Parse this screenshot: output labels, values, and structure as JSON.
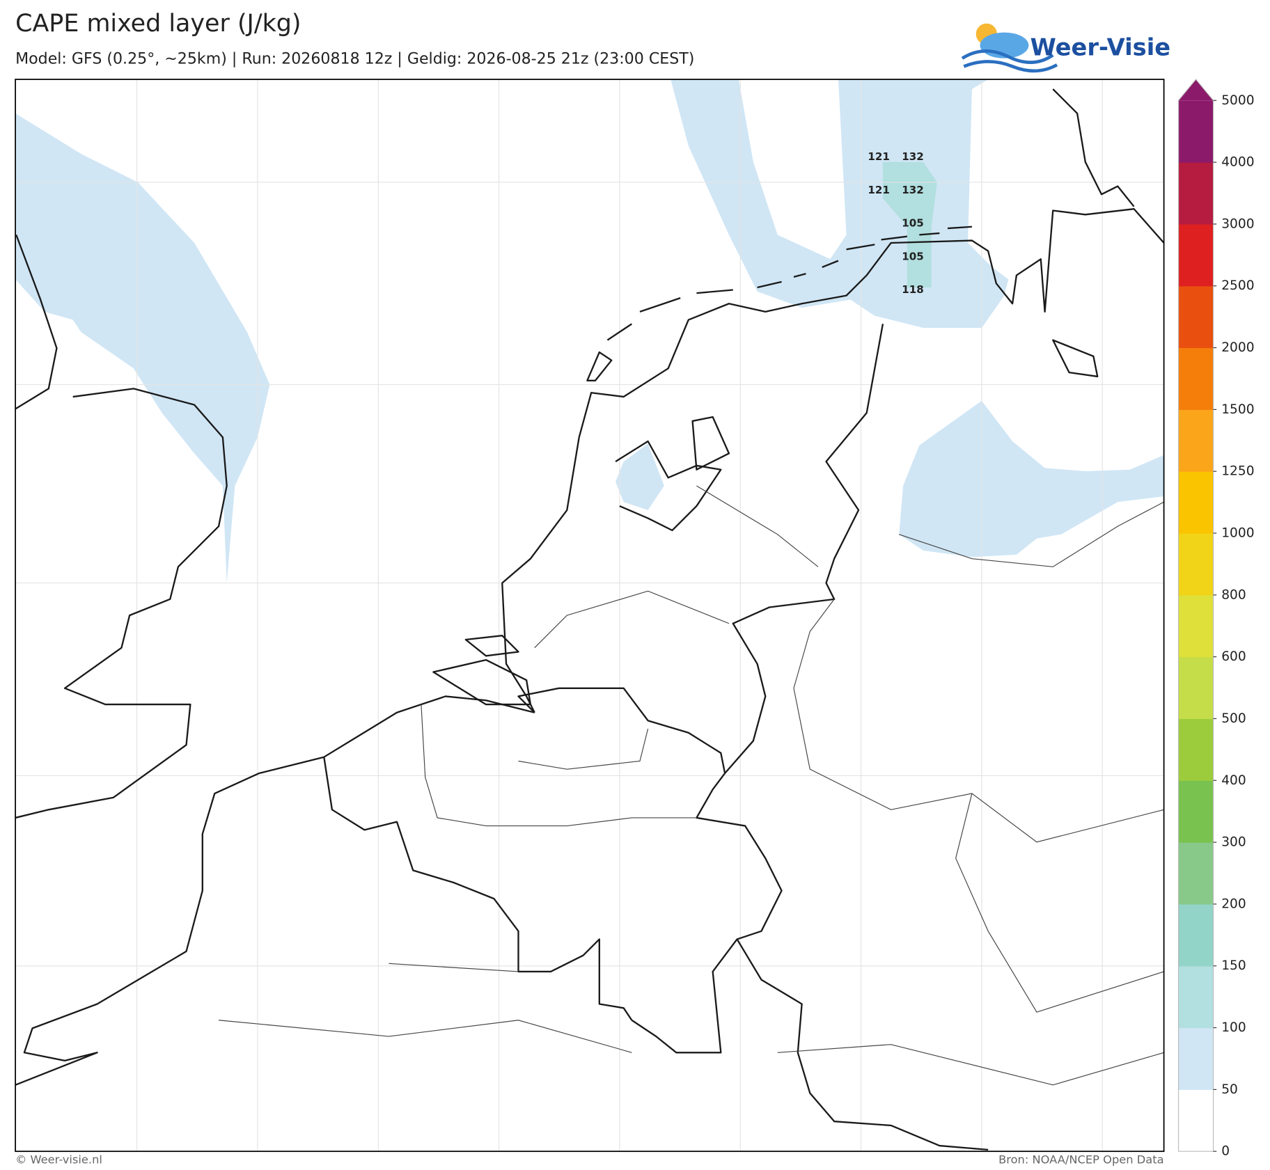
{
  "header": {
    "title": "CAPE mixed layer (J/kg)",
    "subtitle": "Model: GFS (0.25°, ~25km)  |  Run: 20260818 12z  |  Geldig: 2026-08-25 21z (23:00 CEST)",
    "logo": "Weer-Visie"
  },
  "map": {
    "point_labels": [
      121,
      132,
      121,
      132,
      105,
      105,
      118
    ],
    "fill_color": "#d0e6f5",
    "patch_color": "#b2dfdf"
  },
  "colorbar": {
    "levels": [
      0,
      50,
      100,
      150,
      200,
      300,
      400,
      500,
      600,
      800,
      1000,
      1250,
      1500,
      2000,
      2500,
      3000,
      4000,
      5000
    ],
    "colors": [
      "#ffffff",
      "#d0e6f5",
      "#b2dfdf",
      "#92d4c8",
      "#88c98a",
      "#7ac24f",
      "#9ccc3c",
      "#c6dd4a",
      "#dfe03a",
      "#f1d417",
      "#fbc400",
      "#fba51a",
      "#f57e0b",
      "#e9500f",
      "#de2020",
      "#b51c3f",
      "#8c1a6a"
    ],
    "extend_color": "#8c1a6a"
  },
  "footer": {
    "left": "© Weer-visie.nl",
    "right": "Bron: NOAA/NCEP Open Data"
  }
}
